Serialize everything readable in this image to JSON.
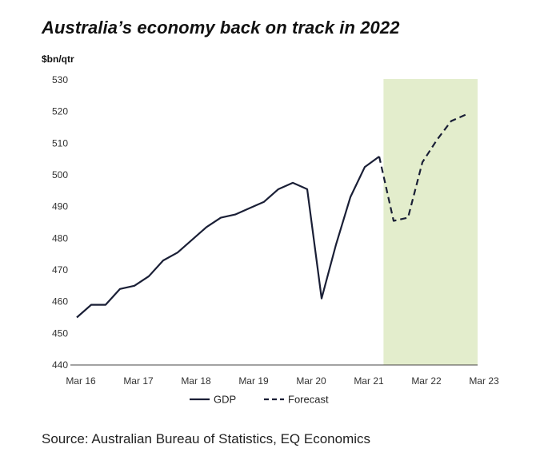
{
  "chart_data": {
    "type": "line",
    "title": "Australia’s economy back on track in 2022",
    "ylabel": "$bn/qtr",
    "ylim": [
      440,
      530
    ],
    "yticks": [
      440,
      450,
      460,
      470,
      480,
      490,
      500,
      510,
      520,
      530
    ],
    "xticks": [
      "Mar 16",
      "Mar 17",
      "Mar 18",
      "Mar 19",
      "Mar 20",
      "Mar 21",
      "Mar 22",
      "Mar 23"
    ],
    "xlim": [
      0,
      28
    ],
    "forecast_shading": {
      "x": [
        21.3,
        28
      ],
      "color": "#e3edcc"
    },
    "series": [
      {
        "name": "GDP",
        "style": "solid",
        "color": "#1a1f36",
        "x": [
          0,
          1,
          2,
          3,
          4,
          5,
          6,
          7,
          8,
          9,
          10,
          11,
          12,
          13,
          14,
          15,
          16,
          17,
          18,
          19,
          20,
          21
        ],
        "y": [
          455,
          459,
          459,
          464,
          465,
          468,
          473,
          475.5,
          479.5,
          483.5,
          486.5,
          487.5,
          489.5,
          491.5,
          495.5,
          497.5,
          495.5,
          461,
          478,
          493,
          502.5,
          505.8
        ]
      },
      {
        "name": "Forecast",
        "style": "dashed",
        "color": "#1a1f36",
        "x": [
          21,
          22,
          23,
          24,
          25,
          26,
          27
        ],
        "y": [
          505.8,
          485.5,
          486.5,
          504,
          511,
          517,
          519
        ]
      }
    ],
    "legend": {
      "placement": "bottom"
    },
    "grid": false
  },
  "source": "Source: Australian Bureau of Statistics, EQ Economics"
}
